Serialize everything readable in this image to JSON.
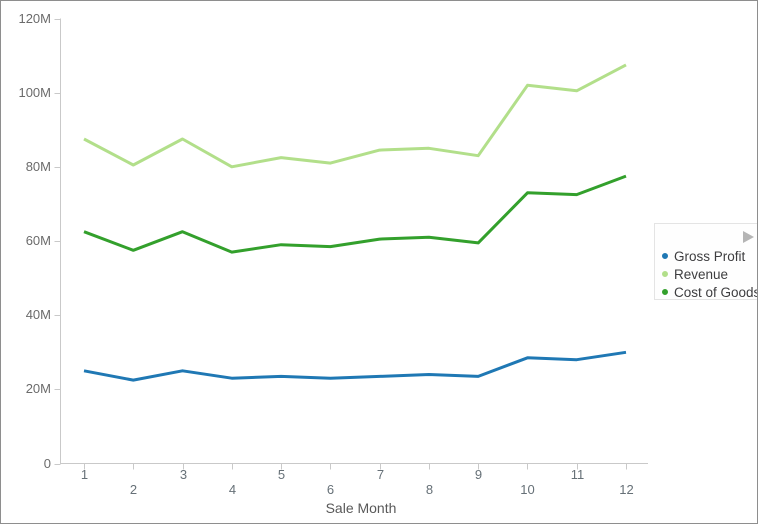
{
  "chart_data": {
    "type": "line",
    "title": "",
    "xlabel": "Sale Month",
    "ylabel": "",
    "categories": [
      "1",
      "2",
      "3",
      "4",
      "5",
      "6",
      "7",
      "8",
      "9",
      "10",
      "11",
      "12"
    ],
    "series": [
      {
        "name": "Gross Profit",
        "color": "#1f78b4",
        "values": [
          25,
          22.5,
          25,
          23,
          23.5,
          23,
          23.5,
          24,
          23.5,
          28.5,
          28,
          30
        ]
      },
      {
        "name": "Revenue",
        "color": "#b2df8a",
        "values": [
          87.5,
          80.5,
          87.5,
          80,
          82.5,
          81,
          84.5,
          85,
          83,
          102,
          100.5,
          107.5
        ]
      },
      {
        "name": "Cost of Goods",
        "color": "#33a02c",
        "values": [
          62.5,
          57.5,
          62.5,
          57,
          59,
          58.5,
          60.5,
          61,
          59.5,
          73,
          72.5,
          77.5
        ]
      }
    ],
    "ylim": [
      0,
      120
    ],
    "y_ticks": [
      {
        "value": 0,
        "label": "0"
      },
      {
        "value": 20,
        "label": "20M"
      },
      {
        "value": 40,
        "label": "40M"
      },
      {
        "value": 60,
        "label": "60M"
      },
      {
        "value": 80,
        "label": "80M"
      },
      {
        "value": 100,
        "label": "100M"
      },
      {
        "value": 120,
        "label": "120M"
      }
    ],
    "grid": false,
    "legend_position": "right"
  },
  "colors": {
    "gross_profit": "#1f78b4",
    "revenue": "#b2df8a",
    "cost_of_goods": "#33a02c",
    "axis_line": "#c9c9c9",
    "axis_label": "#6b6b6b",
    "axis_title": "#595959",
    "legend_text": "#3d3d3f",
    "legend_border": "#e4e4e4",
    "legend_arrow": "#b5b5b5",
    "canvas_border": "#8e8e8e"
  }
}
